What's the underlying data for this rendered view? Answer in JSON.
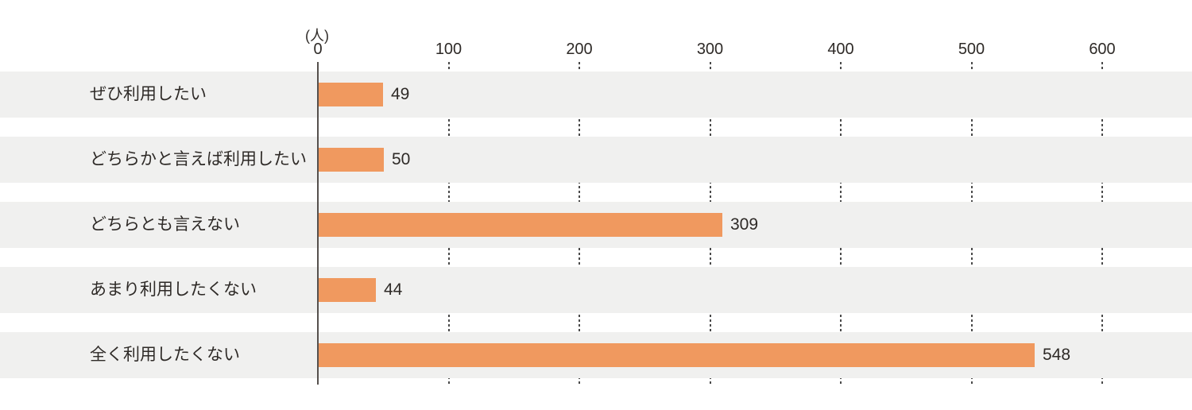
{
  "chart_data": {
    "type": "bar",
    "orientation": "horizontal",
    "unit_label": "(人)",
    "categories": [
      "ぜひ利用したい",
      "どちらかと言えば利用したい",
      "どちらとも言えない",
      "あまり利用したくない",
      "全く利用したくない"
    ],
    "values": [
      49,
      50,
      309,
      44,
      548
    ],
    "x_ticks": [
      0,
      100,
      200,
      300,
      400,
      500,
      600
    ],
    "xlim": [
      0,
      600
    ],
    "grid": "dotted vertical gridlines, hidden behind row bands",
    "legend": "none",
    "colors": {
      "bar": "#f0995f",
      "row_band": "#f0f0ef",
      "text": "#2e2a27",
      "axis": "#55504d",
      "background": "#ffffff"
    }
  }
}
